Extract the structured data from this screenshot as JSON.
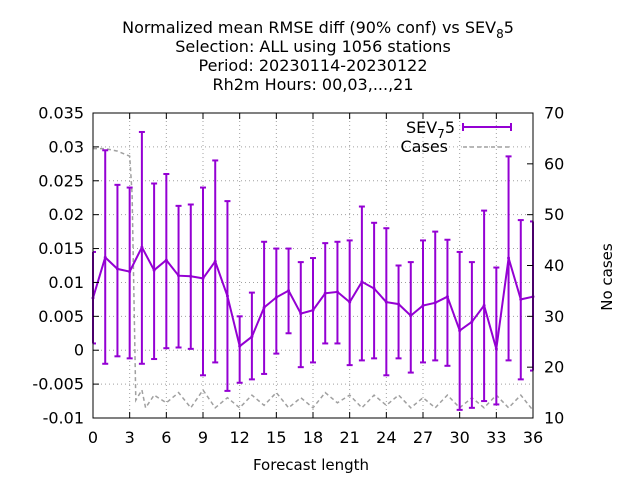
{
  "chart_data": {
    "type": "line",
    "title_lines": [
      {
        "main": "Normalized mean RMSE diff (90% conf) vs SEV",
        "sub": "8",
        "rest": "5"
      },
      {
        "text": "Selection: ALL using  1056 stations"
      },
      {
        "text": "Period: 20230114-20230122"
      },
      {
        "text": "Rh2m   Hours:  00,03,...,21"
      }
    ],
    "xlabel": "Forecast length",
    "ylabel": "",
    "y2label": "No cases",
    "xlim": [
      0,
      36
    ],
    "ylim": [
      -0.01,
      0.035
    ],
    "y2lim": [
      10,
      70
    ],
    "xticks": [
      "0",
      "3",
      "6",
      "9",
      "12",
      "15",
      "18",
      "21",
      "24",
      "27",
      "30",
      "33",
      "36"
    ],
    "yticks": [
      "-0.01",
      "-0.005",
      "0",
      "0.005",
      "0.01",
      "0.015",
      "0.02",
      "0.025",
      "0.03",
      "0.035"
    ],
    "y2ticks": [
      "10",
      "20",
      "30",
      "40",
      "50",
      "60",
      "70"
    ],
    "legend_position": "top-right",
    "series": [
      {
        "name": {
          "main": "SEV",
          "sub": "7",
          "rest": "5"
        },
        "color": "#9400d3",
        "style": "line-errorbars",
        "x": [
          0,
          1,
          2,
          3,
          4,
          5,
          6,
          7,
          8,
          9,
          10,
          11,
          12,
          13,
          14,
          15,
          16,
          17,
          18,
          19,
          20,
          21,
          22,
          23,
          24,
          25,
          26,
          27,
          28,
          29,
          30,
          31,
          32,
          33,
          34,
          35,
          36
        ],
        "y": [
          0.0077,
          0.0137,
          0.012,
          0.0116,
          0.0152,
          0.0118,
          0.0133,
          0.011,
          0.0109,
          0.0106,
          0.0131,
          0.008,
          0.0006,
          0.002,
          0.0063,
          0.0078,
          0.0088,
          0.0054,
          0.0059,
          0.0084,
          0.0086,
          0.0071,
          0.0101,
          0.0091,
          0.0071,
          0.0068,
          0.0051,
          0.0066,
          0.007,
          0.0079,
          0.0029,
          0.0042,
          0.0066,
          0.0002,
          0.0136,
          0.0075,
          0.0079
        ],
        "lower": [
          0.001,
          -0.002,
          -0.0009,
          -0.0012,
          -0.002,
          -0.0013,
          0.0003,
          0.0004,
          0.0002,
          -0.0037,
          -0.0018,
          -0.006,
          -0.0048,
          -0.0043,
          -0.0035,
          -0.0005,
          0.0025,
          -0.0025,
          -0.0018,
          0.001,
          0.001,
          -0.0022,
          -0.0015,
          -0.0012,
          -0.0037,
          -0.0012,
          -0.0033,
          -0.0018,
          -0.0015,
          -0.0023,
          -0.0088,
          -0.0085,
          -0.0075,
          -0.008,
          -0.0015,
          -0.0043,
          -0.003
        ],
        "upper": [
          0.0145,
          0.0295,
          0.0244,
          0.024,
          0.0322,
          0.0246,
          0.026,
          0.0213,
          0.0215,
          0.024,
          0.028,
          0.022,
          0.005,
          0.0085,
          0.016,
          0.015,
          0.015,
          0.013,
          0.0136,
          0.0158,
          0.016,
          0.0162,
          0.0212,
          0.0188,
          0.018,
          0.0125,
          0.013,
          0.0162,
          0.0175,
          0.0163,
          0.0145,
          0.013,
          0.0206,
          0.0122,
          0.0286,
          0.0192,
          0.019
        ]
      },
      {
        "name": {
          "main": "Cases"
        },
        "color": "#a0a0a0",
        "style": "dashed",
        "axis": "y2",
        "x": [
          0,
          1,
          2,
          3,
          3.2,
          3.5,
          4,
          4.3,
          5,
          6,
          7,
          8,
          9,
          10,
          11,
          12,
          13,
          14,
          15,
          16,
          17,
          18,
          19,
          20,
          21,
          22,
          23,
          24,
          25,
          26,
          27,
          28,
          29,
          30,
          31,
          32,
          33,
          34,
          35,
          36
        ],
        "y": [
          63,
          63,
          62.5,
          61.5,
          54,
          13.5,
          15.5,
          12,
          14.5,
          13,
          15,
          12,
          15.5,
          12,
          14,
          12,
          14.5,
          12.5,
          15,
          12,
          14,
          12,
          15,
          13,
          14.5,
          12,
          14.5,
          12.5,
          14.5,
          12,
          14,
          12,
          14.5,
          12,
          14,
          12,
          14.5,
          12,
          14.5,
          11.5
        ]
      }
    ]
  }
}
